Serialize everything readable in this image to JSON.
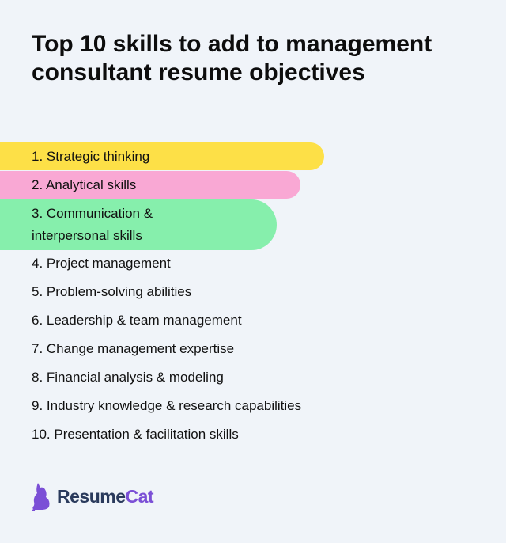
{
  "title": "Top 10 skills to add to management consultant resume objectives",
  "items": [
    {
      "label": "1. Strategic thinking",
      "color": "#fde047"
    },
    {
      "label": "2. Analytical skills",
      "color": "#f9a8d4"
    },
    {
      "label": "3. Communication & interpersonal skills",
      "color": "#86efac"
    },
    {
      "label": "4. Project management"
    },
    {
      "label": "5. Problem-solving abilities"
    },
    {
      "label": "6. Leadership & team management"
    },
    {
      "label": "7. Change management expertise"
    },
    {
      "label": "8. Financial analysis & modeling"
    },
    {
      "label": "9. Industry knowledge & research capabilities"
    },
    {
      "label": "10. Presentation & facilitation skills"
    }
  ],
  "logo": {
    "part1": "Resume",
    "part2": "Cat",
    "icon": "cat-icon",
    "colors": {
      "dark": "#2a3a5c",
      "accent": "#7b4fd6"
    }
  }
}
